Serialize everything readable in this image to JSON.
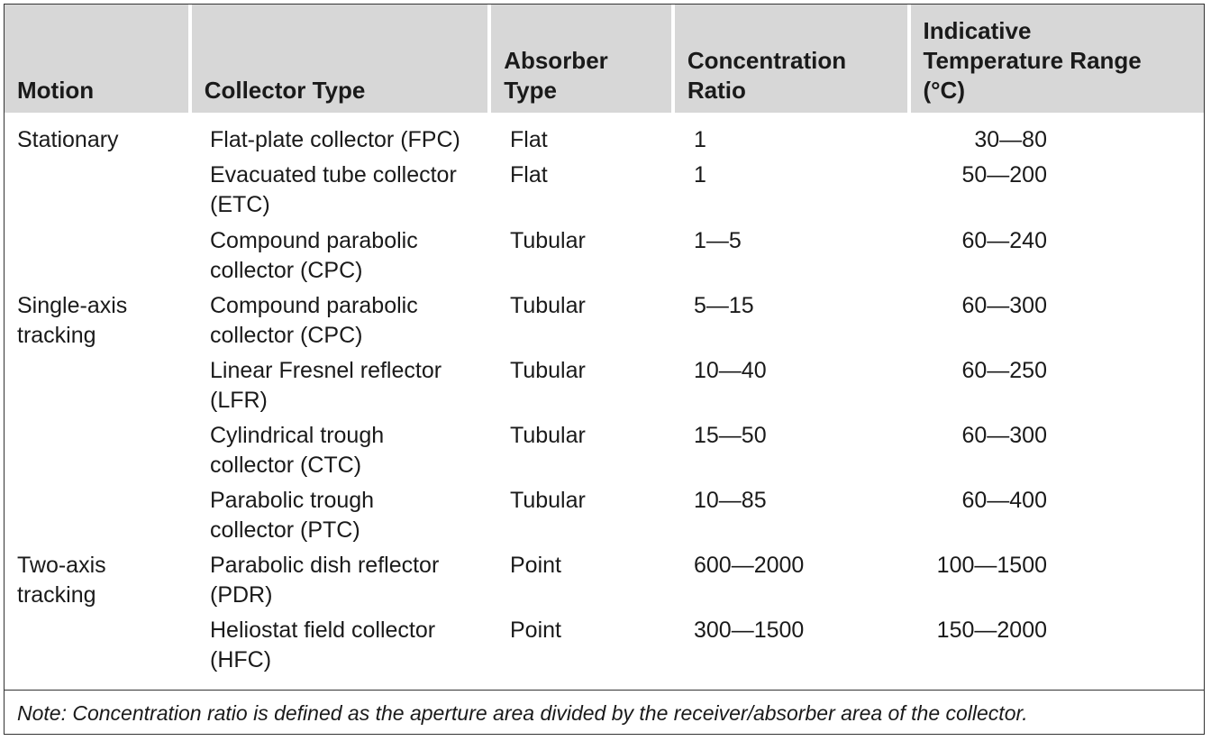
{
  "headers": {
    "motion": "Motion",
    "collector_type": "Collector Type",
    "absorber_type": "Absorber\nType",
    "concentration_ratio": "Concentration\nRatio",
    "temperature_range": "Indicative\nTemperature Range\n(°C)"
  },
  "rows": [
    {
      "motion": "Stationary",
      "collector": "Flat-plate collector (FPC)",
      "absorber": "Flat",
      "ratio": "1",
      "temp": "30—80"
    },
    {
      "motion": "",
      "collector": "Evacuated tube collector\n(ETC)",
      "absorber": "Flat",
      "ratio": "1",
      "temp": "50—200"
    },
    {
      "motion": "",
      "collector": "Compound parabolic\ncollector (CPC)",
      "absorber": "Tubular",
      "ratio": "1—5",
      "temp": "60—240"
    },
    {
      "motion": "Single-axis\ntracking",
      "collector": "Compound parabolic\ncollector (CPC)",
      "absorber": "Tubular",
      "ratio": "5—15",
      "temp": "60—300"
    },
    {
      "motion": "",
      "collector": "Linear Fresnel reflector\n(LFR)",
      "absorber": "Tubular",
      "ratio": "10—40",
      "temp": "60—250"
    },
    {
      "motion": "",
      "collector": "Cylindrical trough\ncollector (CTC)",
      "absorber": "Tubular",
      "ratio": "15—50",
      "temp": "60—300"
    },
    {
      "motion": "",
      "collector": "Parabolic trough\ncollector (PTC)",
      "absorber": "Tubular",
      "ratio": "10—85",
      "temp": "60—400"
    },
    {
      "motion": "Two-axis\ntracking",
      "collector": "Parabolic dish reflector\n(PDR)",
      "absorber": "Point",
      "ratio": "600—2000",
      "temp": "100—1500"
    },
    {
      "motion": "",
      "collector": "Heliostat field collector\n(HFC)",
      "absorber": "Point",
      "ratio": "300—1500",
      "temp": "150—2000"
    }
  ],
  "note": "Note: Concentration ratio is defined as the aperture area divided by the receiver/absorber area of the collector.",
  "colors": {
    "header_bg": "#d7d7d7",
    "border": "#333333",
    "text": "#1a1a1a"
  }
}
